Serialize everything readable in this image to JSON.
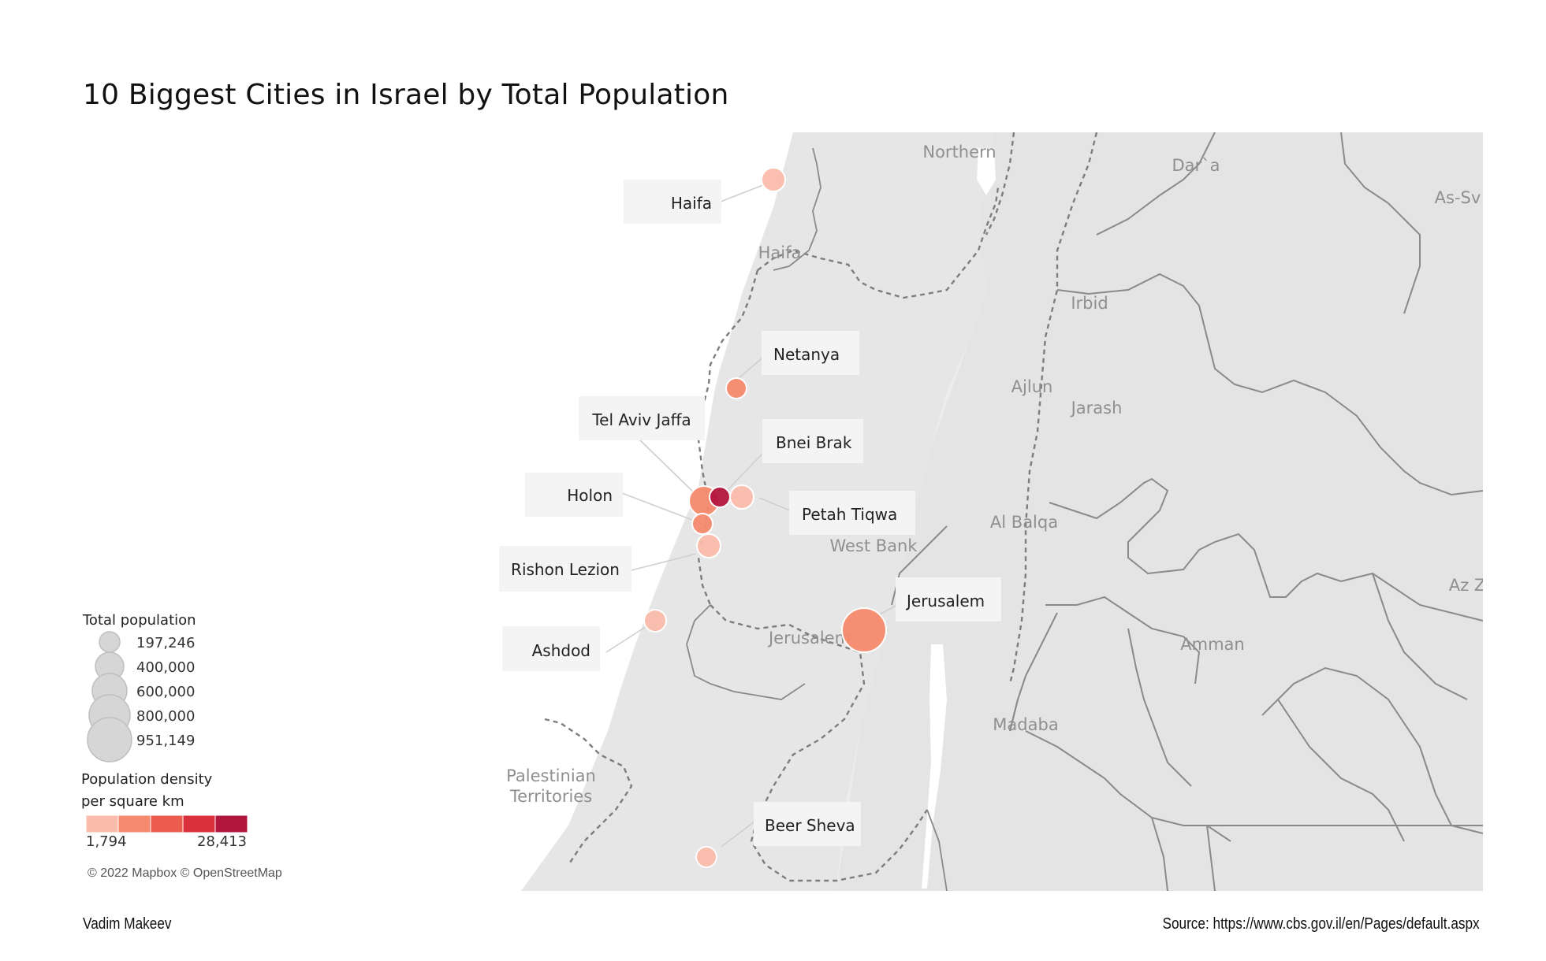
{
  "title": "10 Biggest Cities in Israel by Total Population",
  "footer": {
    "author": "Vadim Makeev",
    "source": "Source: https://www.cbs.gov.il/en/Pages/default.aspx"
  },
  "attribution": "© 2022 Mapbox © OpenStreetMap",
  "region_labels": {
    "northern": "Northern",
    "haifa": "Haifa",
    "irbid": "Irbid",
    "ajlun": "Ajlun",
    "jarash": "Jarash",
    "al_balqa": "Al Balqa",
    "west_bank": "West Bank",
    "jerusalem": "Jerusalem",
    "amman": "Amman",
    "madaba": "Madaba",
    "palestinian": "Palestinian",
    "territories": "Territories",
    "daraa": "Dar`a",
    "as_sv": "As-Sv",
    "az_z": "Az Z"
  },
  "cities": [
    {
      "name": "Haifa"
    },
    {
      "name": "Netanya"
    },
    {
      "name": "Tel Aviv Jaffa"
    },
    {
      "name": "Bnei Brak"
    },
    {
      "name": "Holon"
    },
    {
      "name": "Petah Tiqwa"
    },
    {
      "name": "Rishon Lezion"
    },
    {
      "name": "Jerusalem"
    },
    {
      "name": "Ashdod"
    },
    {
      "name": "Beer Sheva"
    }
  ],
  "legend": {
    "size_title": "Total population",
    "size_values": [
      "197,246",
      "400,000",
      "600,000",
      "800,000",
      "951,149"
    ],
    "color_title_line1": "Population density",
    "color_title_line2": "per square km",
    "color_min": "1,794",
    "color_max": "28,413",
    "color_steps": [
      "#fbbcab",
      "#f58a6e",
      "#eb5b4e",
      "#d9303c",
      "#b3163d"
    ]
  },
  "colors": {
    "background": "#f3f3f3",
    "sea": "#ffffff",
    "land": "#e9e9e9",
    "border": "#9a9a9a"
  }
}
